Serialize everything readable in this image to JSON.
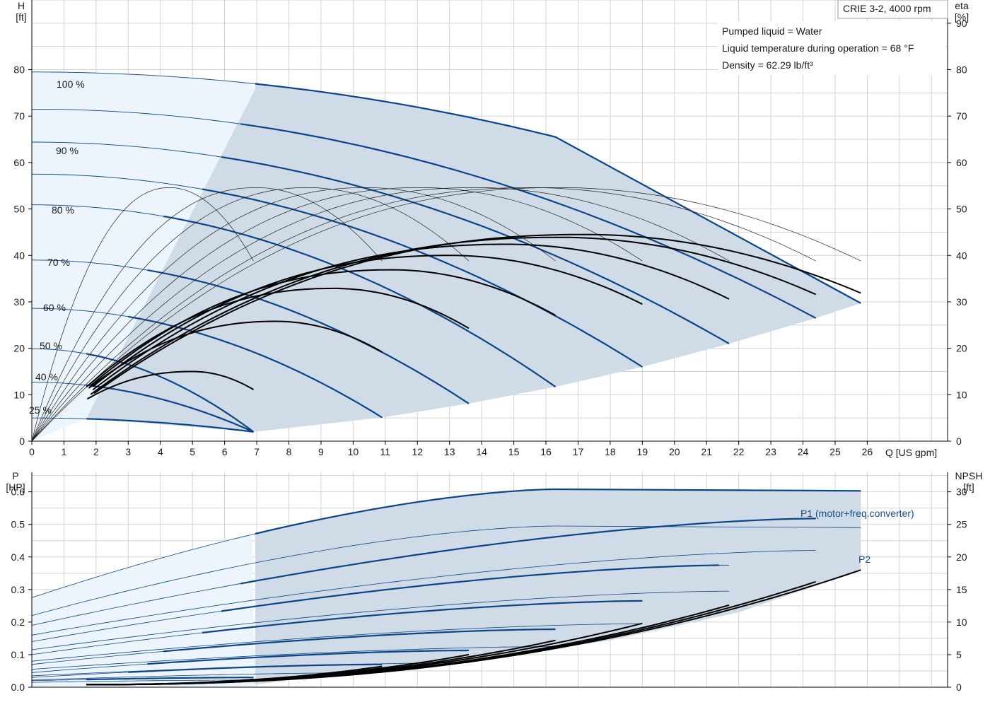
{
  "header": {
    "title": "CRIE 3-2, 4000 rpm",
    "info_lines": [
      "Pumped liquid = Water",
      "Liquid temperature during operation = 68 °F",
      "Density = 62.29 lb/ft³"
    ]
  },
  "colors": {
    "region_fill": "#cfdce8",
    "extended_fill": "#ecf4fc",
    "curve_blue": "#0d4486",
    "curve_black": "#000000",
    "grid": "#d2d2d2",
    "label_blue": "#1a4a8a"
  },
  "chart_data": [
    {
      "type": "line",
      "panel": "head_efficiency",
      "xlabel": "Q [US gpm]",
      "ylabel": "H [ft]",
      "y2label": "eta [%]",
      "xlim": [
        0,
        28.5
      ],
      "ylim": [
        0,
        95
      ],
      "y2lim": [
        0,
        95
      ],
      "xticks": [
        0,
        1,
        2,
        3,
        4,
        5,
        6,
        7,
        8,
        9,
        10,
        11,
        12,
        13,
        14,
        15,
        16,
        17,
        18,
        19,
        20,
        21,
        22,
        23,
        24,
        25,
        26
      ],
      "yticks": [
        0,
        10,
        20,
        30,
        40,
        50,
        60,
        70,
        80
      ],
      "y2ticks": [
        0,
        10,
        20,
        30,
        40,
        50,
        60,
        70,
        80,
        90
      ],
      "grid": true,
      "speed_labels": [
        "100 %",
        "90 %",
        "80 %",
        "70 %",
        "60 %",
        "50 %",
        "40 %",
        "25 %"
      ],
      "head_curves": [
        {
          "speed": 100,
          "q_max": 25.8,
          "h0": 79.5,
          "knee_q": 16.3,
          "knee_h": 65.5,
          "h_end": 29.7
        },
        {
          "speed": 95,
          "q_max": 24.4,
          "h0": 71.5,
          "h_end": 26.5
        },
        {
          "speed": 90,
          "q_max": 21.7,
          "h0": 64.4,
          "h_end": 21.0
        },
        {
          "speed": 85,
          "q_max": 19.0,
          "h0": 57.5,
          "h_end": 16.0
        },
        {
          "speed": 80,
          "q_max": 16.3,
          "h0": 50.9,
          "h_end": 11.7
        },
        {
          "speed": 70,
          "q_max": 13.6,
          "h0": 39.0,
          "h_end": 8.1
        },
        {
          "speed": 60,
          "q_max": 10.9,
          "h0": 28.6,
          "h_end": 5.1
        },
        {
          "speed": 50,
          "q_max": 6.9,
          "h0": 19.9,
          "h_end": 2.0
        },
        {
          "speed": 40,
          "q_max": 6.9,
          "h0": 12.7,
          "h_end": 2.0
        },
        {
          "speed": 25,
          "q_max": 6.9,
          "h0": 5.0,
          "h_end": 2.0
        }
      ],
      "efficiency_curves_black": [
        {
          "q_end": 6.9,
          "q_peak": 5.0,
          "eta_peak": 15.0,
          "eta_end": 11.1
        },
        {
          "q_end": 10.9,
          "q_peak": 7.6,
          "eta_peak": 25.8,
          "eta_end": 19.2
        },
        {
          "q_end": 13.6,
          "q_peak": 9.4,
          "eta_peak": 32.9,
          "eta_end": 24.3
        },
        {
          "q_end": 16.3,
          "q_peak": 11.2,
          "eta_peak": 36.9,
          "eta_end": 27.1
        },
        {
          "q_end": 19.0,
          "q_peak": 13.0,
          "eta_peak": 40.0,
          "eta_end": 29.5
        },
        {
          "q_end": 21.7,
          "q_peak": 14.8,
          "eta_peak": 42.4,
          "eta_end": 30.6
        },
        {
          "q_end": 24.4,
          "q_peak": 16.4,
          "eta_peak": 43.9,
          "eta_end": 31.6
        },
        {
          "q_end": 25.8,
          "q_peak": 17.2,
          "eta_peak": 44.5,
          "eta_end": 31.9
        }
      ],
      "efficiency_curves_thin": [
        {
          "q_end": 6.9,
          "q_peak": 4.3,
          "eta_peak": 54.6,
          "eta_end": 38.8
        },
        {
          "q_end": 10.9,
          "q_peak": 7.0,
          "eta_peak": 54.6,
          "eta_end": 38.8
        },
        {
          "q_end": 13.6,
          "q_peak": 8.6,
          "eta_peak": 54.6,
          "eta_end": 38.8
        },
        {
          "q_end": 16.3,
          "q_peak": 10.4,
          "eta_peak": 54.6,
          "eta_end": 38.8
        },
        {
          "q_end": 19.0,
          "q_peak": 12.1,
          "eta_peak": 54.6,
          "eta_end": 38.8
        },
        {
          "q_end": 21.7,
          "q_peak": 13.8,
          "eta_peak": 54.6,
          "eta_end": 38.8
        },
        {
          "q_end": 24.4,
          "q_peak": 15.5,
          "eta_peak": 54.6,
          "eta_end": 38.8
        },
        {
          "q_end": 25.8,
          "q_peak": 16.4,
          "eta_peak": 54.6,
          "eta_end": 38.8
        }
      ],
      "operating_region_boundary": {
        "min_flow_line": [
          [
            6.95,
            75.8
          ],
          [
            1.7,
            4.9
          ]
        ],
        "min_speed_curve": [
          [
            6.9,
            2.0
          ],
          [
            10.9,
            5.1
          ],
          [
            13.6,
            8.1
          ],
          [
            16.3,
            11.7
          ],
          [
            19.0,
            16.0
          ],
          [
            21.7,
            21.0
          ],
          [
            24.4,
            26.5
          ],
          [
            25.8,
            29.7
          ]
        ]
      }
    },
    {
      "type": "line",
      "panel": "power_npsh",
      "xlabel": "",
      "ylabel": "P [HP]",
      "y2label": "NPSH [ft]",
      "xlim": [
        0,
        28.5
      ],
      "ylim": [
        0,
        0.66
      ],
      "y2lim": [
        0,
        33
      ],
      "yticks": [
        0.0,
        0.1,
        0.2,
        0.3,
        0.4,
        0.5,
        0.6
      ],
      "y2ticks": [
        0,
        5,
        10,
        15,
        20,
        25,
        30
      ],
      "grid": true,
      "series_labels": [
        "P1 (motor+freq.converter)",
        "P2"
      ],
      "p1_curves": [
        {
          "q_end": 25.8,
          "p_start": 0.275,
          "p_knee": 0.608,
          "knee_q": 16.3,
          "p_end": 0.603
        },
        {
          "q_end": 24.4,
          "p_start": 0.19,
          "p_end": 0.518
        },
        {
          "q_end": 21.7,
          "p_start": 0.14,
          "p_end": 0.375
        },
        {
          "q_end": 19.0,
          "p_start": 0.1,
          "p_end": 0.265
        },
        {
          "q_end": 16.3,
          "p_start": 0.07,
          "p_end": 0.178
        },
        {
          "q_end": 13.6,
          "p_start": 0.045,
          "p_end": 0.113
        },
        {
          "q_end": 10.9,
          "p_start": 0.03,
          "p_end": 0.07
        },
        {
          "q_end": 6.9,
          "p_start": 0.02,
          "p_end": 0.03
        }
      ],
      "p2_curves": [
        {
          "q_end": 25.8,
          "p_start": 0.22,
          "p_knee": 0.495,
          "knee_q": 16.3,
          "p_end": 0.49
        },
        {
          "q_end": 24.4,
          "p_start": 0.16,
          "p_end": 0.42
        },
        {
          "q_end": 21.7,
          "p_start": 0.115,
          "p_end": 0.295
        },
        {
          "q_end": 19.0,
          "p_start": 0.08,
          "p_end": 0.195
        },
        {
          "q_end": 16.3,
          "p_start": 0.055,
          "p_end": 0.125
        },
        {
          "q_end": 13.6,
          "p_start": 0.035,
          "p_end": 0.075
        },
        {
          "q_end": 10.9,
          "p_start": 0.022,
          "p_end": 0.045
        },
        {
          "q_end": 6.9,
          "p_start": 0.015,
          "p_end": 0.022
        }
      ],
      "npsh_curves": [
        {
          "q_end": 25.8,
          "npsh_end": 18.0
        },
        {
          "q_end": 24.4,
          "npsh_end": 16.2
        },
        {
          "q_end": 21.7,
          "npsh_end": 12.6
        },
        {
          "q_end": 19.0,
          "npsh_end": 9.8
        },
        {
          "q_end": 16.3,
          "npsh_end": 7.2
        },
        {
          "q_end": 13.6,
          "npsh_end": 5.0
        },
        {
          "q_end": 10.9,
          "npsh_end": 3.2
        },
        {
          "q_end": 6.9,
          "npsh_end": 1.2
        }
      ]
    }
  ],
  "axis_titles": {
    "h_title": "H",
    "h_unit": "[ft]",
    "eta_title": "eta",
    "eta_unit": "[%]",
    "q_label": "Q [US gpm]",
    "p_title": "P",
    "p_unit": "[HP]",
    "npsh_title": "NPSH",
    "npsh_unit": "[ft]"
  }
}
